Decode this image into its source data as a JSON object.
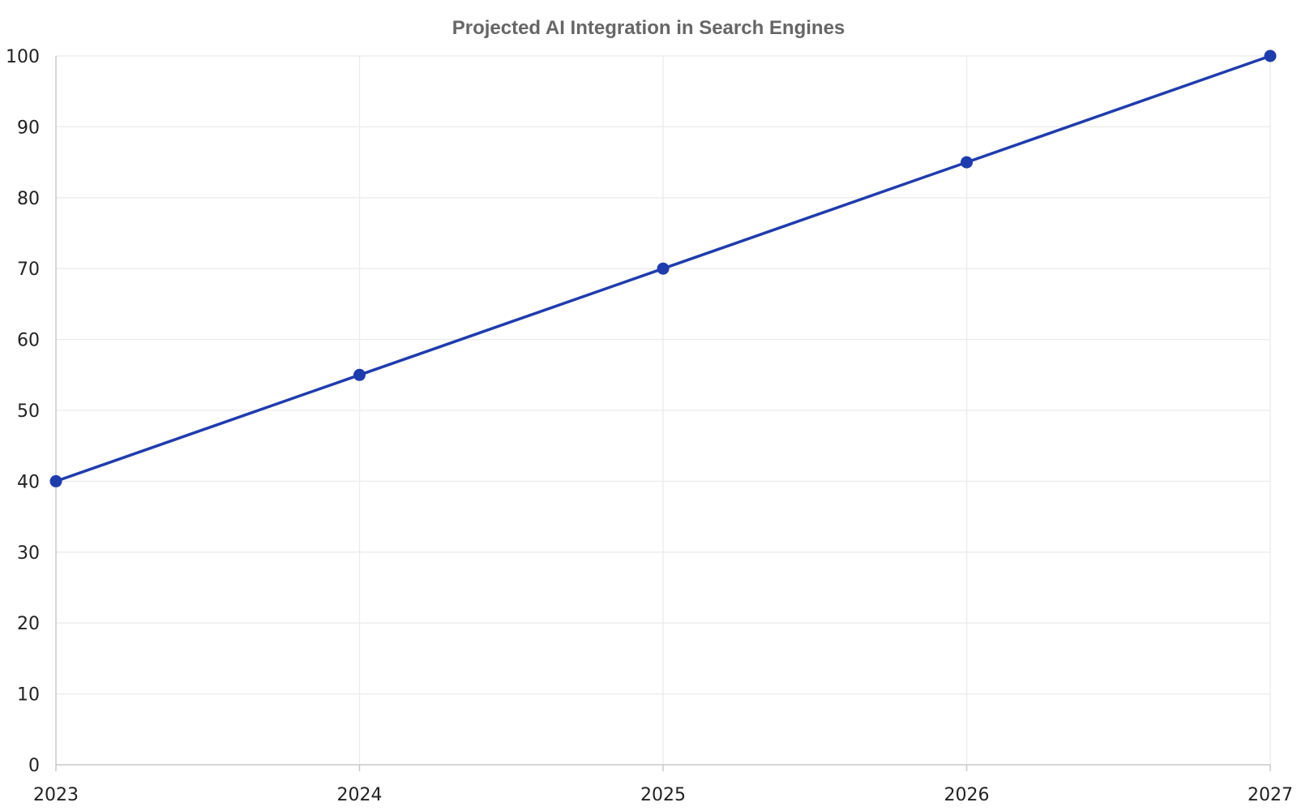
{
  "chart_data": {
    "type": "line",
    "title": "Projected AI Integration in Search Engines",
    "xlabel": "",
    "ylabel": "",
    "x": [
      "2023",
      "2024",
      "2025",
      "2026",
      "2027"
    ],
    "series": [
      {
        "values": [
          40,
          55,
          70,
          85,
          100
        ]
      }
    ],
    "ylim": [
      0,
      100
    ],
    "y_ticks": [
      0,
      10,
      20,
      30,
      40,
      50,
      60,
      70,
      80,
      90,
      100
    ],
    "grid": true,
    "legend": "none",
    "colors": {
      "line": "#1f3cae",
      "marker": "#1f3cae"
    }
  }
}
